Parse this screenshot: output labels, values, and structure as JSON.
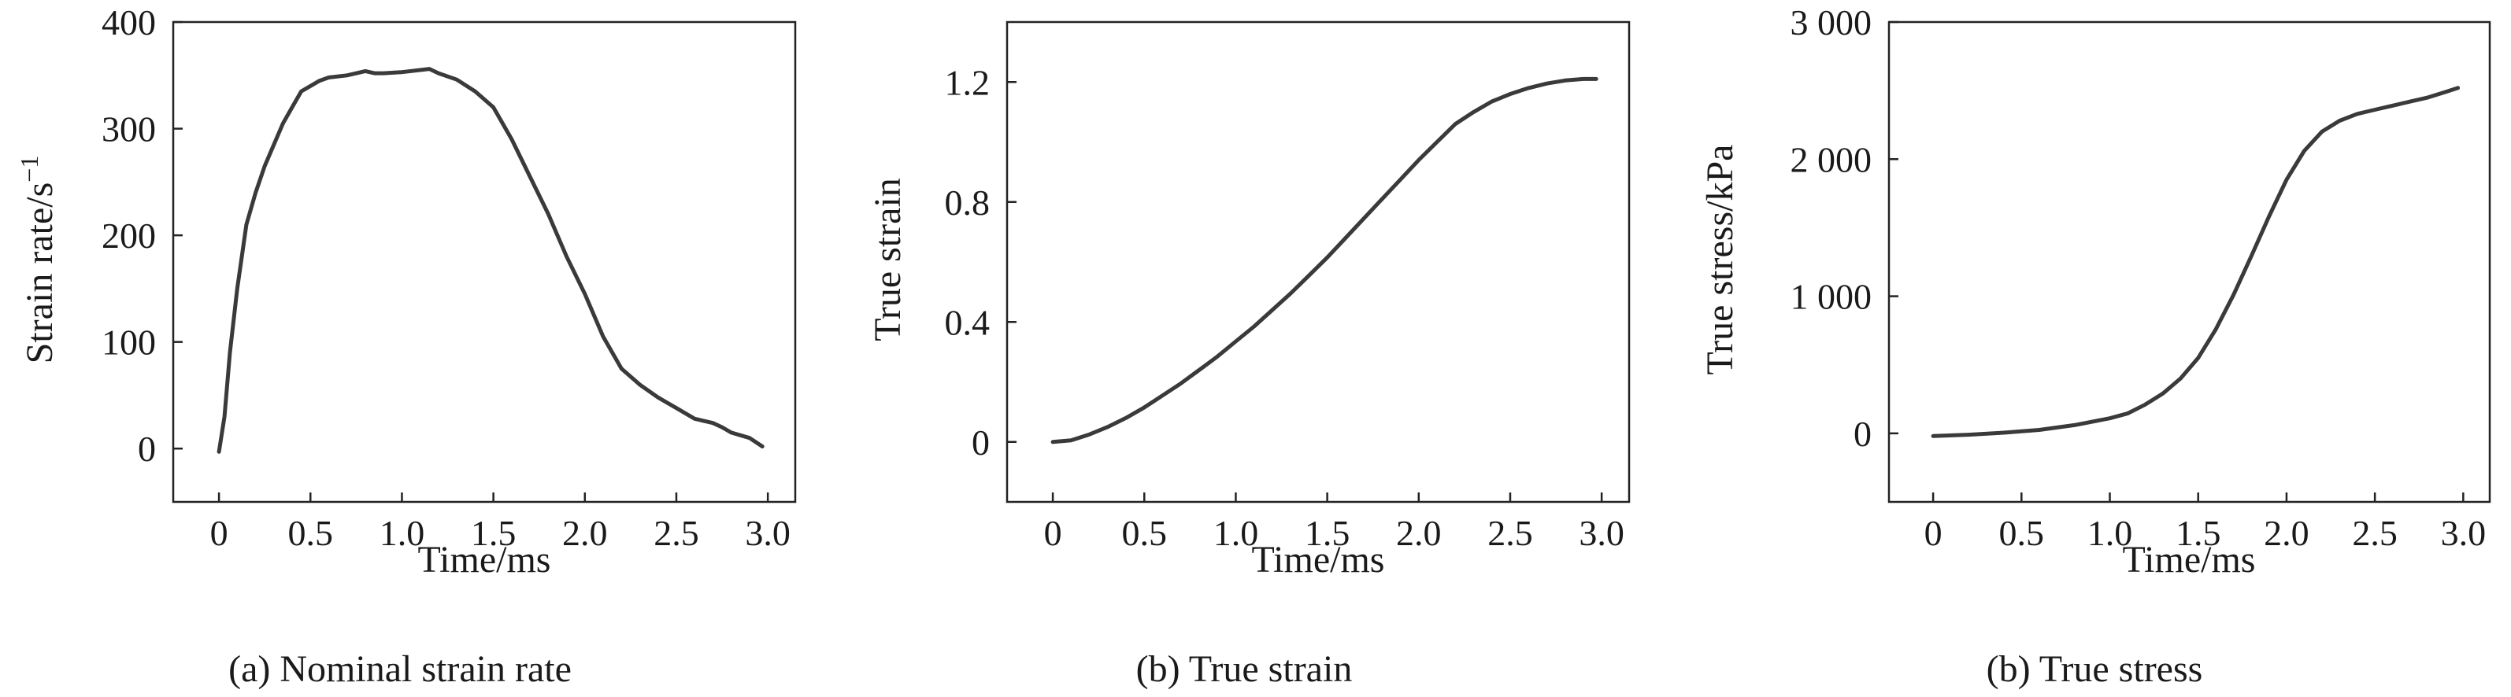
{
  "chart_data": [
    {
      "type": "line",
      "caption": "(a) Nominal strain rate",
      "xlabel": "Time/ms",
      "ylabel_text": "Strain rate/s",
      "ylabel_sup": "−1",
      "xlim": [
        -0.25,
        3.15
      ],
      "ylim": [
        -50,
        400
      ],
      "xticks": [
        0,
        0.5,
        1.0,
        1.5,
        2.0,
        2.5,
        3.0
      ],
      "xtick_labels": [
        "0",
        "0.5",
        "1.0",
        "1.5",
        "2.0",
        "2.5",
        "3.0"
      ],
      "yticks": [
        0,
        100,
        200,
        300,
        400
      ],
      "ytick_labels": [
        "0",
        "100",
        "200",
        "300",
        "400"
      ],
      "series": [
        {
          "x": [
            0.0,
            0.03,
            0.06,
            0.1,
            0.15,
            0.2,
            0.25,
            0.3,
            0.35,
            0.4,
            0.45,
            0.5,
            0.55,
            0.6,
            0.7,
            0.8,
            0.85,
            0.9,
            1.0,
            1.1,
            1.15,
            1.2,
            1.3,
            1.4,
            1.5,
            1.6,
            1.7,
            1.8,
            1.9,
            2.0,
            2.1,
            2.2,
            2.3,
            2.4,
            2.5,
            2.6,
            2.7,
            2.75,
            2.8,
            2.9,
            2.97
          ],
          "y": [
            -3,
            30,
            90,
            150,
            210,
            240,
            265,
            285,
            305,
            320,
            335,
            340,
            345,
            348,
            350,
            354,
            352,
            352,
            353,
            355,
            356,
            352,
            346,
            335,
            320,
            290,
            255,
            220,
            180,
            145,
            105,
            75,
            60,
            48,
            38,
            28,
            24,
            20,
            15,
            10,
            2
          ]
        }
      ]
    },
    {
      "type": "line",
      "caption": "(b) True strain",
      "xlabel": "Time/ms",
      "ylabel": "True strain",
      "xlim": [
        -0.25,
        3.15
      ],
      "ylim": [
        -0.2,
        1.4
      ],
      "xticks": [
        0,
        0.5,
        1.0,
        1.5,
        2.0,
        2.5,
        3.0
      ],
      "xtick_labels": [
        "0",
        "0.5",
        "1.0",
        "1.5",
        "2.0",
        "2.5",
        "3.0"
      ],
      "yticks": [
        0,
        0.4,
        0.8,
        1.2
      ],
      "ytick_labels": [
        "0",
        "0.4",
        "0.8",
        "1.2"
      ],
      "series": [
        {
          "x": [
            0.0,
            0.1,
            0.2,
            0.3,
            0.4,
            0.5,
            0.6,
            0.7,
            0.8,
            0.9,
            1.0,
            1.1,
            1.2,
            1.3,
            1.4,
            1.5,
            1.6,
            1.7,
            1.8,
            1.9,
            2.0,
            2.1,
            2.2,
            2.3,
            2.4,
            2.5,
            2.6,
            2.7,
            2.8,
            2.9,
            2.97
          ],
          "y": [
            0.0,
            0.005,
            0.025,
            0.05,
            0.08,
            0.115,
            0.155,
            0.195,
            0.24,
            0.285,
            0.335,
            0.385,
            0.44,
            0.495,
            0.555,
            0.615,
            0.68,
            0.745,
            0.81,
            0.875,
            0.94,
            1.0,
            1.06,
            1.1,
            1.135,
            1.16,
            1.18,
            1.195,
            1.205,
            1.21,
            1.21
          ]
        }
      ]
    },
    {
      "type": "line",
      "caption": "(b) True stress",
      "xlabel": "Time/ms",
      "ylabel": "True stress/kPa",
      "xlim": [
        -0.25,
        3.15
      ],
      "ylim": [
        -500,
        3000
      ],
      "xticks": [
        0,
        0.5,
        1.0,
        1.5,
        2.0,
        2.5,
        3.0
      ],
      "xtick_labels": [
        "0",
        "0.5",
        "1.0",
        "1.5",
        "2.0",
        "2.5",
        "3.0"
      ],
      "yticks": [
        0,
        1000,
        2000,
        3000
      ],
      "ytick_labels": [
        "0",
        "1 000",
        "2 000",
        "3 000"
      ],
      "series": [
        {
          "x": [
            0.0,
            0.2,
            0.4,
            0.6,
            0.8,
            1.0,
            1.1,
            1.2,
            1.3,
            1.4,
            1.5,
            1.6,
            1.7,
            1.8,
            1.9,
            2.0,
            2.1,
            2.2,
            2.3,
            2.4,
            2.5,
            2.6,
            2.7,
            2.8,
            2.9,
            2.97
          ],
          "y": [
            -20,
            -10,
            5,
            25,
            60,
            110,
            145,
            210,
            290,
            400,
            550,
            760,
            1010,
            1290,
            1580,
            1850,
            2060,
            2200,
            2280,
            2330,
            2360,
            2390,
            2420,
            2450,
            2490,
            2520
          ]
        }
      ]
    }
  ]
}
